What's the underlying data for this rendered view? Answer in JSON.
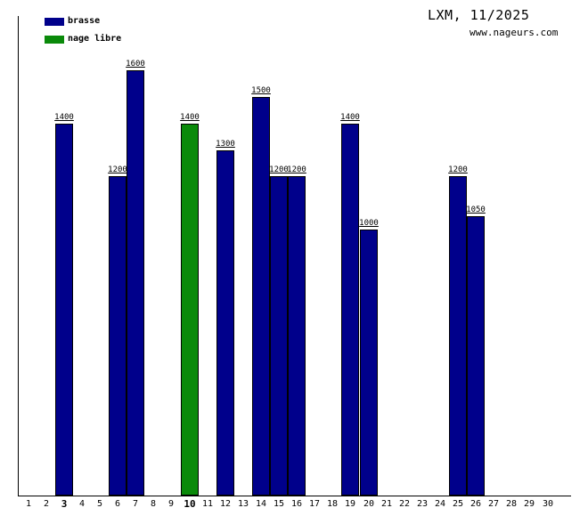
{
  "title": "LXM, 11/2025",
  "watermark": "www.nageurs.com",
  "legend": [
    {
      "label": "brasse",
      "color": "#00008b"
    },
    {
      "label": "nage libre",
      "color": "#0a8a0a"
    }
  ],
  "chart_data": {
    "type": "bar",
    "title": "LXM, 11/2025",
    "xlabel": "",
    "ylabel": "",
    "categories": [
      1,
      2,
      3,
      4,
      5,
      6,
      7,
      8,
      9,
      10,
      11,
      12,
      13,
      14,
      15,
      16,
      17,
      18,
      19,
      20,
      21,
      22,
      23,
      24,
      25,
      26,
      27,
      28,
      29,
      30
    ],
    "bold_categories": [
      3,
      10
    ],
    "ylim": [
      0,
      1600
    ],
    "grid": false,
    "legend_position": "top-left",
    "bar_value_labels_underlined": true,
    "series": [
      {
        "name": "brasse",
        "color": "#00008b",
        "values": {
          "3": 1400,
          "6": 1200,
          "7": 1600,
          "12": 1300,
          "14": 1500,
          "15": 1200,
          "16": 1200,
          "19": 1400,
          "20": 1000,
          "25": 1200,
          "26": 1050
        }
      },
      {
        "name": "nage libre",
        "color": "#0a8a0a",
        "values": {
          "10": 1400
        }
      }
    ]
  }
}
